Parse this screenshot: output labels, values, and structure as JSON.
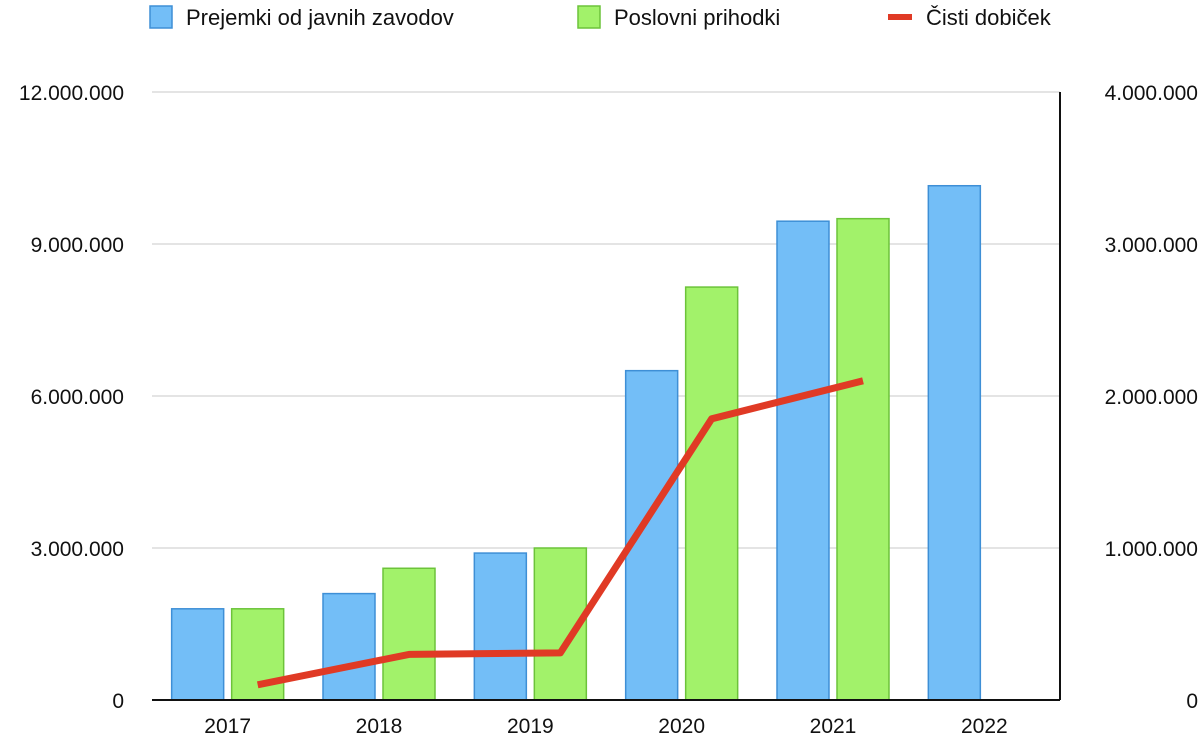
{
  "chart_data": {
    "type": "bar",
    "categories": [
      "2017",
      "2018",
      "2019",
      "2020",
      "2021",
      "2022"
    ],
    "series": [
      {
        "name": "Prejemki od javnih zavodov",
        "type": "bar",
        "axis": "left",
        "color": "#73BEF7",
        "stroke": "#3E8FD6",
        "values": [
          1800000,
          2100000,
          2900000,
          6500000,
          9450000,
          10150000
        ]
      },
      {
        "name": "Poslovni prihodki",
        "type": "bar",
        "axis": "left",
        "color": "#A2F26A",
        "stroke": "#6CC33A",
        "values": [
          1800000,
          2600000,
          3000000,
          8150000,
          9500000,
          null
        ]
      },
      {
        "name": "Čisti dobiček",
        "type": "line",
        "axis": "right",
        "color": "#E03A25",
        "values": [
          100000,
          300000,
          310000,
          1850000,
          2100000,
          null
        ]
      }
    ],
    "y_left": {
      "ylim": [
        0,
        12000000
      ],
      "ticks": [
        "0",
        "3.000.000",
        "6.000.000",
        "9.000.000",
        "12.000.000"
      ]
    },
    "y_right": {
      "ylim": [
        0,
        4000000
      ],
      "ticks": [
        "0",
        "1.000.000",
        "2.000.000",
        "3.000.000",
        "4.000.000"
      ]
    },
    "legend_position": "top",
    "grid": true,
    "title": "",
    "xlabel": "",
    "ylabel": ""
  }
}
